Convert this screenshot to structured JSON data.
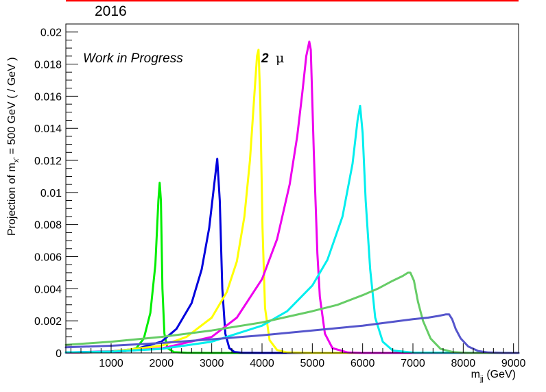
{
  "header": {
    "year": "2016",
    "accent_color": "#ff0000"
  },
  "annotations": {
    "work_in_progress": "Work in Progress",
    "mu_number": "2",
    "mu_symbol": "μ"
  },
  "chart_data": {
    "type": "line",
    "xlabel": "m_jj (GeV)",
    "xlabel_main": "m",
    "xlabel_sub": "jj",
    "xlabel_unit": " (GeV)",
    "ylabel": "Projection of m_x' = 500 GeV ( / GeV )",
    "ylabel_pre": "Projection of m",
    "ylabel_sub": "x'",
    "ylabel_post": " = 500 GeV ( / GeV )",
    "xlim": [
      100,
      9100
    ],
    "ylim": [
      0,
      0.0205
    ],
    "xticks": [
      1000,
      2000,
      3000,
      4000,
      5000,
      6000,
      7000,
      8000,
      9000
    ],
    "xtick_labels": [
      "1000",
      "2000",
      "3000",
      "4000",
      "5000",
      "6000",
      "7000",
      "8000",
      "9000"
    ],
    "yticks": [
      0,
      0.002,
      0.004,
      0.006,
      0.008,
      0.01,
      0.012,
      0.014,
      0.016,
      0.018,
      0.02
    ],
    "ytick_labels": [
      "0",
      "0.002",
      "0.004",
      "0.006",
      "0.008",
      "0.01",
      "0.012",
      "0.014",
      "0.016",
      "0.018",
      "0.02"
    ],
    "grid": false,
    "legend": "none",
    "series": [
      {
        "color": "#00ee00",
        "x": [
          100,
          1000,
          1300,
          1500,
          1650,
          1780,
          1880,
          1940,
          1965,
          1990,
          2020,
          2060,
          2120,
          2250,
          2500,
          3000,
          9100
        ],
        "y": [
          2e-05,
          6e-05,
          0.00012,
          0.0003,
          0.0009,
          0.0025,
          0.0055,
          0.0095,
          0.0106,
          0.0095,
          0.004,
          0.0012,
          0.0003,
          5e-05,
          1e-05,
          0,
          0
        ]
      },
      {
        "color": "#0000dd",
        "x": [
          100,
          1000,
          1500,
          2000,
          2300,
          2600,
          2800,
          2950,
          3050,
          3110,
          3160,
          3210,
          3270,
          3350,
          3450,
          3600,
          4000,
          9100
        ],
        "y": [
          3e-05,
          0.0001,
          0.00025,
          0.0007,
          0.0015,
          0.0031,
          0.0052,
          0.0078,
          0.0105,
          0.0121,
          0.0095,
          0.004,
          0.0012,
          0.0003,
          6e-05,
          1e-05,
          0,
          0
        ]
      },
      {
        "color": "#ffff00",
        "x": [
          100,
          1000,
          2000,
          2500,
          3000,
          3300,
          3500,
          3650,
          3760,
          3850,
          3900,
          3930,
          3965,
          4010,
          4060,
          4150,
          4300,
          4500,
          5000,
          9100
        ],
        "y": [
          2e-05,
          8e-05,
          0.00045,
          0.001,
          0.0022,
          0.0038,
          0.0057,
          0.0085,
          0.012,
          0.0162,
          0.0185,
          0.0189,
          0.0158,
          0.0078,
          0.0028,
          0.0008,
          0.00018,
          3e-05,
          0,
          0
        ]
      },
      {
        "color": "#ee00ee",
        "x": [
          100,
          1000,
          2000,
          3000,
          3500,
          4000,
          4300,
          4550,
          4700,
          4800,
          4880,
          4940,
          4970,
          5030,
          5100,
          5150,
          5250,
          5400,
          5700,
          6000,
          9100
        ],
        "y": [
          2e-05,
          6e-05,
          0.00028,
          0.001,
          0.0022,
          0.0046,
          0.0071,
          0.0105,
          0.0135,
          0.0162,
          0.0185,
          0.0194,
          0.0189,
          0.0125,
          0.0062,
          0.0035,
          0.0012,
          0.0003,
          3e-05,
          0,
          0
        ]
      },
      {
        "color": "#00eeee",
        "x": [
          100,
          1000,
          2000,
          3000,
          4000,
          4500,
          5000,
          5300,
          5600,
          5800,
          5900,
          5950,
          6000,
          6060,
          6150,
          6250,
          6400,
          6600,
          7000,
          9100
        ],
        "y": [
          3e-05,
          8e-05,
          0.00025,
          0.0007,
          0.0017,
          0.0026,
          0.0042,
          0.0058,
          0.0085,
          0.0118,
          0.0145,
          0.0154,
          0.0137,
          0.0095,
          0.0052,
          0.0022,
          0.0007,
          0.00015,
          2e-05,
          0
        ]
      },
      {
        "color": "#66cc66",
        "x": [
          100,
          1000,
          2000,
          3000,
          4000,
          5000,
          5500,
          6000,
          6300,
          6600,
          6800,
          6900,
          6950,
          7020,
          7100,
          7200,
          7350,
          7550,
          7800,
          8100,
          9100
        ],
        "y": [
          0.0005,
          0.0007,
          0.001,
          0.0014,
          0.0019,
          0.0026,
          0.003,
          0.0036,
          0.004,
          0.0045,
          0.0048,
          0.005,
          0.005,
          0.0045,
          0.0032,
          0.002,
          0.0009,
          0.00025,
          5e-05,
          0,
          0
        ]
      },
      {
        "color": "#5555cc",
        "x": [
          100,
          1000,
          2000,
          3000,
          4000,
          5000,
          6000,
          6500,
          7000,
          7300,
          7500,
          7650,
          7720,
          7780,
          7850,
          7950,
          8100,
          8300,
          8500,
          8800,
          9100
        ],
        "y": [
          0.00035,
          0.00045,
          0.00062,
          0.00085,
          0.0011,
          0.0014,
          0.0017,
          0.0019,
          0.0021,
          0.0022,
          0.0023,
          0.0024,
          0.0024,
          0.0021,
          0.0015,
          0.0009,
          0.0004,
          0.00012,
          3e-05,
          0,
          0
        ]
      }
    ]
  }
}
